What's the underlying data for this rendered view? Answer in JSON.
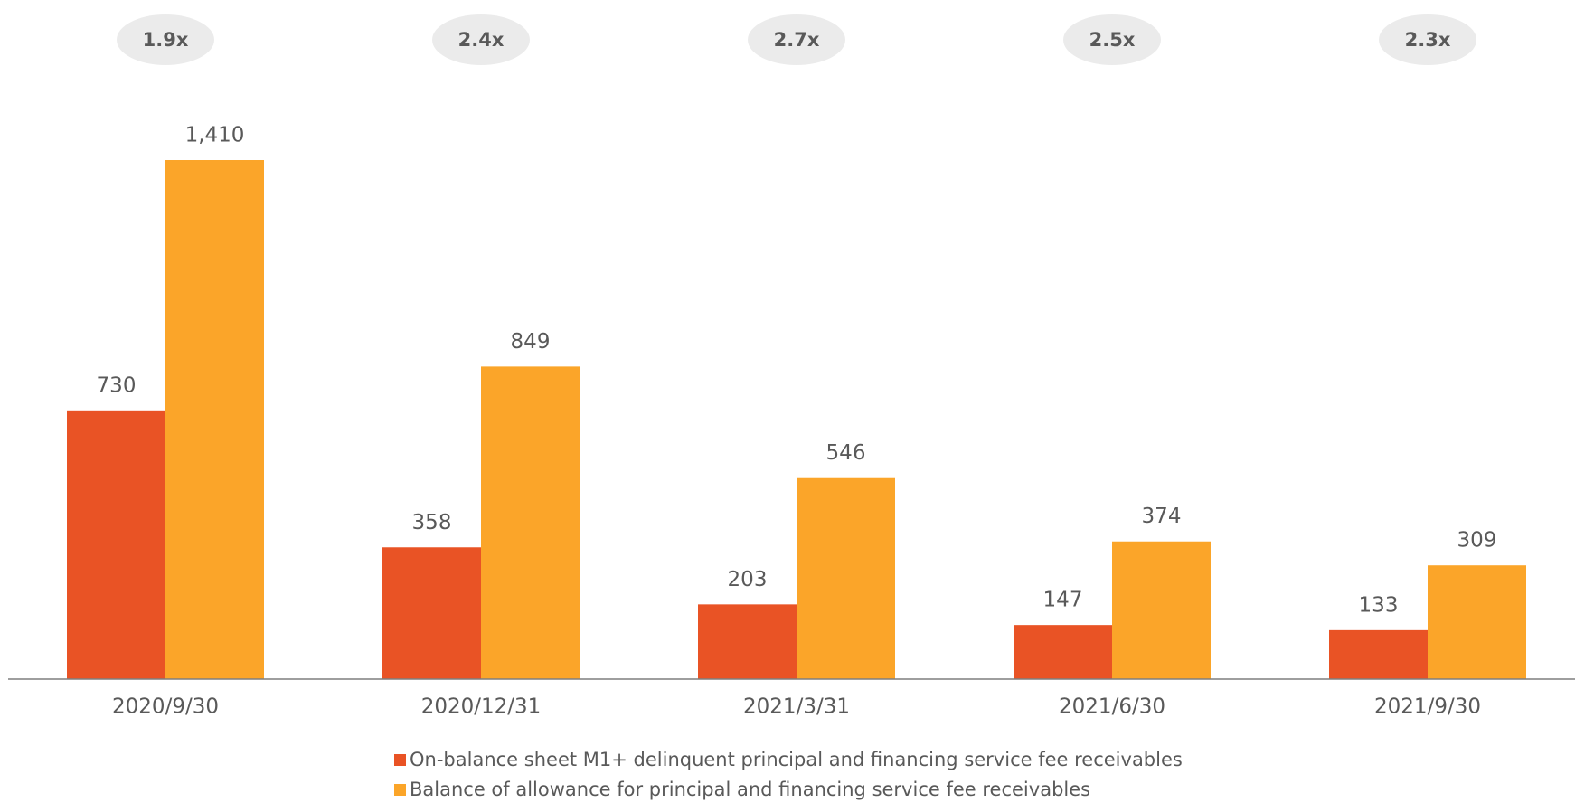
{
  "chart_data": {
    "type": "bar",
    "categories": [
      "2020/9/30",
      "2020/12/31",
      "2021/3/31",
      "2021/6/30",
      "2021/9/30"
    ],
    "series": [
      {
        "name": "On-balance sheet M1+ delinquent principal and financing service fee receivables",
        "color": "#e95325",
        "values": [
          730,
          358,
          203,
          147,
          133
        ]
      },
      {
        "name": "Balance of allowance for principal and financing service fee receivables",
        "color": "#fba529",
        "values": [
          1410,
          849,
          546,
          374,
          309
        ],
        "value_labels": [
          "1,410",
          "849",
          "546",
          "374",
          "309"
        ]
      }
    ],
    "annotations": [
      "1.9x",
      "2.4x",
      "2.7x",
      "2.5x",
      "2.3x"
    ]
  }
}
